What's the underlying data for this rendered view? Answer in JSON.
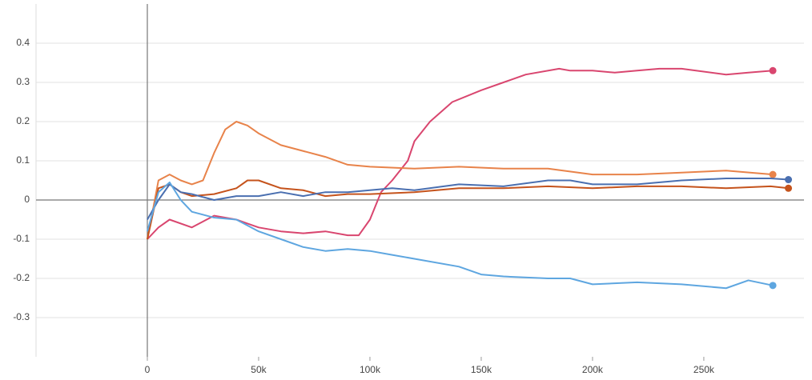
{
  "chart_data": {
    "type": "line",
    "xlim": [
      -50000,
      295000
    ],
    "ylim": [
      -0.4,
      0.5
    ],
    "xticks": [
      0,
      {
        "value": 50000,
        "label": "50k"
      },
      {
        "value": 100000,
        "label": "100k"
      },
      {
        "value": 150000,
        "label": "150k"
      },
      {
        "value": 200000,
        "label": "200k"
      },
      {
        "value": 250000,
        "label": "250k"
      }
    ],
    "yticks": [
      -0.3,
      -0.2,
      -0.1,
      0,
      0.1,
      0.2,
      0.3,
      0.4
    ],
    "grid": true,
    "series": [
      {
        "color": "#d9466f",
        "x": [
          0,
          5000,
          10000,
          20000,
          30000,
          40000,
          45000,
          50000,
          60000,
          70000,
          80000,
          90000,
          95000,
          100000,
          105000,
          110000,
          117000,
          120000,
          127000,
          137000,
          150000,
          160000,
          170000,
          185000,
          190000,
          200000,
          210000,
          220000,
          230000,
          240000,
          260000,
          270000,
          281000
        ],
        "values": [
          -0.1,
          -0.07,
          -0.05,
          -0.07,
          -0.04,
          -0.05,
          -0.06,
          -0.07,
          -0.08,
          -0.085,
          -0.08,
          -0.09,
          -0.09,
          -0.05,
          0.02,
          0.05,
          0.1,
          0.15,
          0.2,
          0.25,
          0.28,
          0.3,
          0.32,
          0.335,
          0.33,
          0.33,
          0.325,
          0.33,
          0.335,
          0.335,
          0.32,
          0.325,
          0.33
        ]
      },
      {
        "color": "#e8834a",
        "x": [
          0,
          5000,
          10000,
          15000,
          20000,
          25000,
          30000,
          35000,
          40000,
          45000,
          50000,
          60000,
          70000,
          80000,
          90000,
          100000,
          120000,
          140000,
          160000,
          180000,
          200000,
          220000,
          240000,
          260000,
          281000
        ],
        "values": [
          -0.1,
          0.05,
          0.065,
          0.05,
          0.04,
          0.05,
          0.12,
          0.18,
          0.2,
          0.19,
          0.17,
          0.14,
          0.125,
          0.11,
          0.09,
          0.085,
          0.08,
          0.085,
          0.08,
          0.08,
          0.065,
          0.065,
          0.07,
          0.075,
          0.065
        ]
      },
      {
        "color": "#c5531c",
        "x": [
          0,
          5000,
          10000,
          15000,
          20000,
          30000,
          40000,
          45000,
          50000,
          60000,
          70000,
          80000,
          90000,
          100000,
          120000,
          140000,
          160000,
          180000,
          200000,
          220000,
          240000,
          260000,
          280000,
          288000
        ],
        "values": [
          -0.1,
          0.03,
          0.04,
          0.02,
          0.01,
          0.015,
          0.03,
          0.05,
          0.05,
          0.03,
          0.025,
          0.01,
          0.015,
          0.015,
          0.02,
          0.03,
          0.03,
          0.035,
          0.03,
          0.035,
          0.035,
          0.03,
          0.035,
          0.03
        ]
      },
      {
        "color": "#4a6fb0",
        "x": [
          0,
          5000,
          10000,
          15000,
          20000,
          30000,
          40000,
          50000,
          60000,
          70000,
          80000,
          90000,
          100000,
          110000,
          120000,
          140000,
          160000,
          180000,
          190000,
          200000,
          220000,
          240000,
          260000,
          280000,
          288000
        ],
        "values": [
          -0.05,
          0.0,
          0.04,
          0.02,
          0.015,
          0.0,
          0.01,
          0.01,
          0.02,
          0.01,
          0.02,
          0.02,
          0.025,
          0.03,
          0.025,
          0.04,
          0.035,
          0.05,
          0.05,
          0.04,
          0.04,
          0.05,
          0.055,
          0.055,
          0.052
        ]
      },
      {
        "color": "#5ea6e0",
        "x": [
          0,
          5000,
          10000,
          15000,
          20000,
          30000,
          40000,
          50000,
          60000,
          70000,
          80000,
          90000,
          100000,
          110000,
          120000,
          140000,
          150000,
          160000,
          180000,
          190000,
          200000,
          220000,
          240000,
          260000,
          270000,
          281000
        ],
        "values": [
          -0.08,
          0.02,
          0.045,
          0.0,
          -0.03,
          -0.045,
          -0.05,
          -0.08,
          -0.1,
          -0.12,
          -0.13,
          -0.125,
          -0.13,
          -0.14,
          -0.15,
          -0.17,
          -0.19,
          -0.195,
          -0.2,
          -0.2,
          -0.215,
          -0.21,
          -0.215,
          -0.225,
          -0.205,
          -0.218
        ]
      }
    ]
  }
}
